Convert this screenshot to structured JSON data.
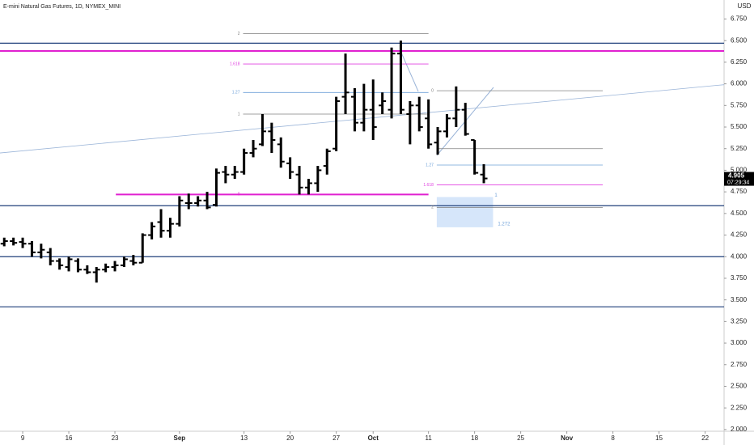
{
  "chart_data": {
    "type": "ohlc",
    "title": "E-mini Natural Gas Futures, 1D, NYMEX_MINI",
    "currency": "USD",
    "x": [
      -2,
      -1,
      0,
      1,
      2,
      3,
      4,
      5,
      6,
      7,
      8,
      9,
      10,
      11,
      12,
      13,
      14,
      15,
      16,
      17,
      18,
      19,
      20,
      21,
      22,
      23,
      24,
      25,
      26,
      27,
      28,
      29,
      30,
      31,
      32,
      33,
      34,
      35,
      36,
      37,
      38,
      39,
      40,
      41,
      42,
      43,
      44,
      45,
      46,
      47,
      48,
      49,
      50
    ],
    "open": [
      4.15,
      4.18,
      4.17,
      4.15,
      4.05,
      4.05,
      3.95,
      3.88,
      3.95,
      3.85,
      3.82,
      3.85,
      3.88,
      3.9,
      3.95,
      3.93,
      4.25,
      4.4,
      4.3,
      4.38,
      4.62,
      4.62,
      4.65,
      4.6,
      4.98,
      4.95,
      4.98,
      5.2,
      5.3,
      5.45,
      5.3,
      5.08,
      4.95,
      4.8,
      4.85,
      5.05,
      5.25,
      5.85,
      5.85,
      5.55,
      5.7,
      5.75,
      5.7,
      6.35,
      5.65,
      5.75,
      5.6,
      5.32,
      5.45,
      5.6,
      5.7,
      5.35,
      4.95
    ],
    "high": [
      4.22,
      4.22,
      4.22,
      4.18,
      4.15,
      4.1,
      3.98,
      4.0,
      3.98,
      3.9,
      3.88,
      3.92,
      3.95,
      4.0,
      4.02,
      4.27,
      4.4,
      4.55,
      4.45,
      4.7,
      4.73,
      4.7,
      4.75,
      5.02,
      5.05,
      5.05,
      5.25,
      5.35,
      5.65,
      5.55,
      5.38,
      5.15,
      5.05,
      4.9,
      5.05,
      5.25,
      5.85,
      6.35,
      5.95,
      6.0,
      6.05,
      5.9,
      6.42,
      6.5,
      5.8,
      5.85,
      5.82,
      5.5,
      5.65,
      5.97,
      5.78,
      5.35,
      5.07
    ],
    "low": [
      4.12,
      4.13,
      4.1,
      4.0,
      3.98,
      3.9,
      3.85,
      3.83,
      3.82,
      3.8,
      3.7,
      3.82,
      3.83,
      3.88,
      3.9,
      3.93,
      4.2,
      4.22,
      4.22,
      4.35,
      4.55,
      4.58,
      4.55,
      4.58,
      4.85,
      4.9,
      4.95,
      5.15,
      5.28,
      5.2,
      5.03,
      4.9,
      4.72,
      4.72,
      4.75,
      4.95,
      5.22,
      5.65,
      5.45,
      5.45,
      5.35,
      5.65,
      5.6,
      5.65,
      5.3,
      5.45,
      5.25,
      5.18,
      5.38,
      5.5,
      5.4,
      4.95,
      4.85
    ],
    "close": [
      4.18,
      4.16,
      4.15,
      4.05,
      4.08,
      3.95,
      3.9,
      3.97,
      3.85,
      3.82,
      3.85,
      3.88,
      3.9,
      3.97,
      3.93,
      4.25,
      4.35,
      4.3,
      4.38,
      4.65,
      4.62,
      4.65,
      4.57,
      4.97,
      4.95,
      4.98,
      5.2,
      5.25,
      5.45,
      5.35,
      5.1,
      4.98,
      4.8,
      4.85,
      5.0,
      5.22,
      5.8,
      5.9,
      5.55,
      5.7,
      5.5,
      5.8,
      6.35,
      5.7,
      5.75,
      5.5,
      5.3,
      5.45,
      5.6,
      5.7,
      5.42,
      4.97,
      4.905
    ],
    "color": "#000000",
    "last_price_label": "4.905",
    "countdown": "07:29:34",
    "xlim": [
      -2.46,
      76.05
    ],
    "xticks": [
      {
        "value": 0,
        "label": "9"
      },
      {
        "value": 5,
        "label": "16"
      },
      {
        "value": 10,
        "label": "23"
      },
      {
        "value": 17,
        "label": "Sep"
      },
      {
        "value": 24,
        "label": "13"
      },
      {
        "value": 29,
        "label": "20"
      },
      {
        "value": 34,
        "label": "27"
      },
      {
        "value": 38,
        "label": "Oct"
      },
      {
        "value": 44,
        "label": "11"
      },
      {
        "value": 49,
        "label": "18"
      },
      {
        "value": 54,
        "label": "25"
      },
      {
        "value": 59,
        "label": "Nov"
      },
      {
        "value": 64,
        "label": "8"
      },
      {
        "value": 69,
        "label": "15"
      },
      {
        "value": 74,
        "label": "22"
      }
    ],
    "ylim": [
      1.98,
      6.97
    ],
    "yticks": [
      {
        "value": 2,
        "label": "2.000"
      },
      {
        "value": 2.25,
        "label": "2.250"
      },
      {
        "value": 2.5,
        "label": "2.500"
      },
      {
        "value": 2.75,
        "label": "2.750"
      },
      {
        "value": 3,
        "label": "3.000"
      },
      {
        "value": 3.25,
        "label": "3.250"
      },
      {
        "value": 3.5,
        "label": "3.500"
      },
      {
        "value": 3.75,
        "label": "3.750"
      },
      {
        "value": 4,
        "label": "4.000"
      },
      {
        "value": 4.25,
        "label": "4.250"
      },
      {
        "value": 4.5,
        "label": "4.500"
      },
      {
        "value": 4.75,
        "label": "4.750"
      },
      {
        "value": 5,
        "label": "5.000"
      },
      {
        "value": 5.25,
        "label": "5.250"
      },
      {
        "value": 5.5,
        "label": "5.500"
      },
      {
        "value": 5.75,
        "label": "5.750"
      },
      {
        "value": 6,
        "label": "6.000"
      },
      {
        "value": 6.25,
        "label": "6.250"
      },
      {
        "value": 6.5,
        "label": "6.500"
      },
      {
        "value": 6.75,
        "label": "6.750"
      }
    ],
    "hlines": [
      {
        "value": 6.47,
        "color": "#1f3f7a"
      },
      {
        "value": 6.38,
        "color": "#e020d0"
      },
      {
        "value": 4.59,
        "color": "#1f3f7a"
      },
      {
        "value": 4.0,
        "color": "#1f3f7a"
      },
      {
        "value": 3.42,
        "color": "#1f3f7a"
      }
    ],
    "trendline": {
      "x": [
        -2.46,
        76.05
      ],
      "y": [
        5.2,
        5.99
      ],
      "color": "#9ab4d8"
    },
    "fibs": [
      {
        "x": [
          23.9,
          44
        ],
        "levels": [
          {
            "label": "2",
            "value": 6.58,
            "color": "#808080"
          },
          {
            "label": "1.618",
            "value": 6.23,
            "color": "#e040e0"
          },
          {
            "label": "1.27",
            "value": 5.9,
            "color": "#6ea0d8"
          },
          {
            "label": "1",
            "value": 5.65,
            "color": "#808080"
          },
          {
            "label": "0",
            "value": 4.72,
            "color": "#e020d0",
            "x0": 10.1
          }
        ]
      },
      {
        "x": [
          44.9,
          62.9
        ],
        "levels": [
          {
            "label": "0",
            "value": 5.92,
            "color": "#808080"
          },
          {
            "value": 5.25,
            "color": "#808080"
          },
          {
            "label": "1.27",
            "value": 5.06,
            "color": "#6ea0d8"
          },
          {
            "label": "1.618",
            "value": 4.83,
            "color": "#e040e0"
          },
          {
            "label": "2",
            "value": 4.57,
            "color": "#808080"
          }
        ]
      }
    ],
    "box": {
      "x": [
        44.9,
        51
      ],
      "y": [
        4.34,
        4.69
      ],
      "top_label": "1",
      "bottom_label": "1.272",
      "color": "#d6e6fa"
    }
  }
}
